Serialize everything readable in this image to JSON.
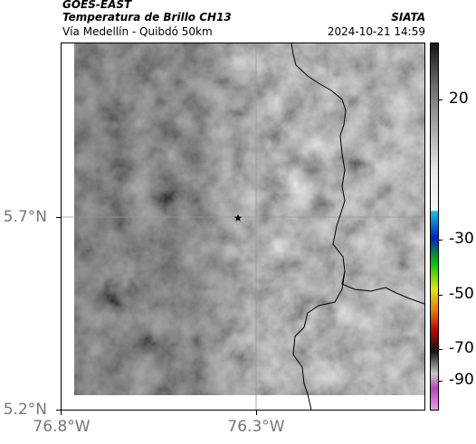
{
  "header": {
    "satellite": "GOES-EAST",
    "product": "Temperatura de Brillo CH13",
    "region": "Vía Medellín - Quibdó 50km",
    "source": "SIATA",
    "datetime": "2024-10-21 14:59"
  },
  "map": {
    "lat_labels": [
      "5.7°N",
      "5.2°N"
    ],
    "lon_labels": [
      "76.8°W",
      "76.3°W"
    ],
    "marker": "star-marker"
  },
  "colorbar": {
    "tick_labels": [
      "20",
      "-30",
      "-50",
      "-70",
      "-90"
    ],
    "colors": {
      "warm_gray_light": "#d6d6d6",
      "warm_gray_dark": "#2a2a2a",
      "cyan": "#00c8e6",
      "blue": "#0020c8",
      "green": "#00c800",
      "yellow": "#e6e600",
      "orange": "#e67800",
      "red": "#c80000",
      "magenta": "#c040c0"
    }
  }
}
